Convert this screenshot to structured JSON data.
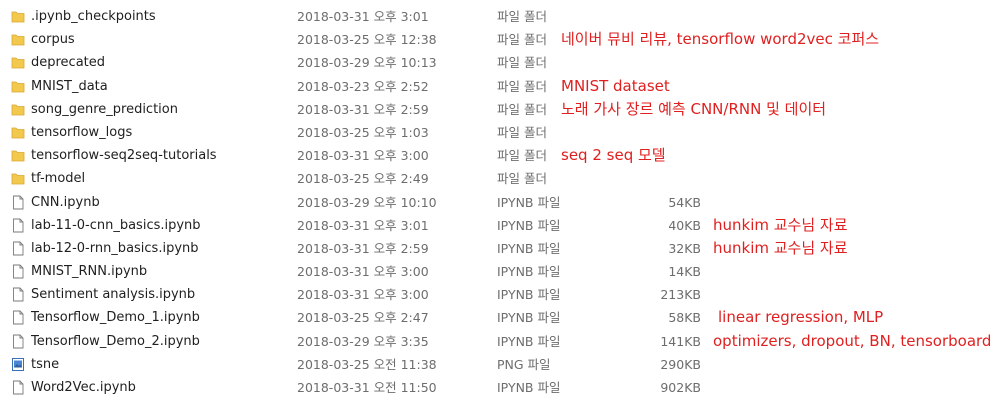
{
  "colors": {
    "annotation": "#e02020",
    "folder": "#f3c94d",
    "meta_text": "#6d6d6d"
  },
  "files": [
    {
      "icon": "folder-icon",
      "name": ".ipynb_checkpoints",
      "date": "2018-03-31 오후 3:01",
      "type": "파일 폴더",
      "size": "",
      "note": ""
    },
    {
      "icon": "folder-icon",
      "name": "corpus",
      "date": "2018-03-25 오후 12:38",
      "type": "파일 폴더",
      "size": "",
      "note": "네이버 뮤비 리뷰, tensorflow word2vec 코퍼스"
    },
    {
      "icon": "folder-icon",
      "name": "deprecated",
      "date": "2018-03-29 오후 10:13",
      "type": "파일 폴더",
      "size": "",
      "note": ""
    },
    {
      "icon": "folder-icon",
      "name": "MNIST_data",
      "date": "2018-03-23 오후 2:52",
      "type": "파일 폴더",
      "size": "",
      "note": "MNIST dataset"
    },
    {
      "icon": "folder-icon",
      "name": "song_genre_prediction",
      "date": "2018-03-31 오후 2:59",
      "type": "파일 폴더",
      "size": "",
      "note": "노래 가사 장르 예측 CNN/RNN 및 데이터"
    },
    {
      "icon": "folder-icon",
      "name": "tensorflow_logs",
      "date": "2018-03-25 오후 1:03",
      "type": "파일 폴더",
      "size": "",
      "note": ""
    },
    {
      "icon": "folder-icon",
      "name": "tensorflow-seq2seq-tutorials",
      "date": "2018-03-31 오후 3:00",
      "type": "파일 폴더",
      "size": "",
      "note": "seq 2 seq 모델"
    },
    {
      "icon": "folder-icon",
      "name": "tf-model",
      "date": "2018-03-25 오후 2:49",
      "type": "파일 폴더",
      "size": "",
      "note": ""
    },
    {
      "icon": "file-icon",
      "name": "CNN.ipynb",
      "date": "2018-03-29 오후 10:10",
      "type": "IPYNB 파일",
      "size": "54KB",
      "note": ""
    },
    {
      "icon": "file-icon",
      "name": "lab-11-0-cnn_basics.ipynb",
      "date": "2018-03-31 오후 3:01",
      "type": "IPYNB 파일",
      "size": "40KB",
      "note": "hunkim 교수님 자료"
    },
    {
      "icon": "file-icon",
      "name": "lab-12-0-rnn_basics.ipynb",
      "date": "2018-03-31 오후 2:59",
      "type": "IPYNB 파일",
      "size": "32KB",
      "note": "hunkim 교수님 자료"
    },
    {
      "icon": "file-icon",
      "name": "MNIST_RNN.ipynb",
      "date": "2018-03-31 오후 3:00",
      "type": "IPYNB 파일",
      "size": "14KB",
      "note": ""
    },
    {
      "icon": "file-icon",
      "name": "Sentiment analysis.ipynb",
      "date": "2018-03-31 오후 3:00",
      "type": "IPYNB 파일",
      "size": "213KB",
      "note": ""
    },
    {
      "icon": "file-icon",
      "name": "Tensorflow_Demo_1.ipynb",
      "date": "2018-03-25 오후 2:47",
      "type": "IPYNB 파일",
      "size": "58KB",
      "note": "linear regression, MLP"
    },
    {
      "icon": "file-icon",
      "name": "Tensorflow_Demo_2.ipynb",
      "date": "2018-03-29 오후 3:35",
      "type": "IPYNB 파일",
      "size": "141KB",
      "note": "optimizers, dropout, BN, tensorboard"
    },
    {
      "icon": "image-file-icon",
      "name": "tsne",
      "date": "2018-03-25 오전 11:38",
      "type": "PNG 파일",
      "size": "290KB",
      "note": ""
    },
    {
      "icon": "file-icon",
      "name": "Word2Vec.ipynb",
      "date": "2018-03-31 오전 11:50",
      "type": "IPYNB 파일",
      "size": "902KB",
      "note": ""
    }
  ]
}
